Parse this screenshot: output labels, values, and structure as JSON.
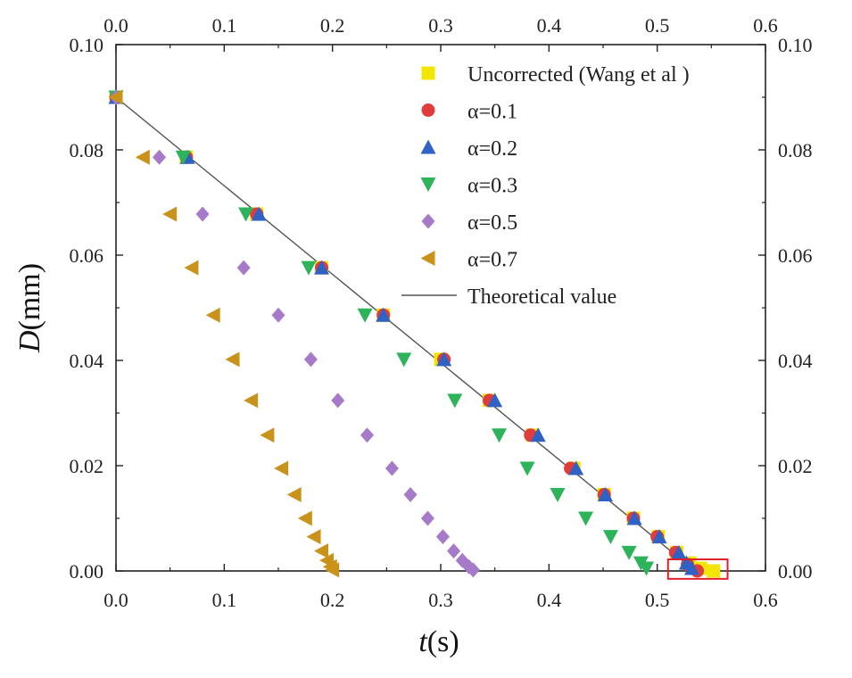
{
  "chart_data": {
    "type": "scatter",
    "xlabel_var": "t",
    "xlabel_unit": "(s)",
    "ylabel_var": "D",
    "ylabel_unit": "(mm)",
    "xlim": [
      0.0,
      0.6
    ],
    "ylim": [
      0.0,
      0.1
    ],
    "x_ticks": [
      "0.0",
      "0.1",
      "0.2",
      "0.3",
      "0.4",
      "0.5",
      "0.6"
    ],
    "y_ticks": [
      "0.00",
      "0.02",
      "0.04",
      "0.06",
      "0.08",
      "0.10"
    ],
    "grid": false,
    "legend_position": "top-right",
    "highlight_box": {
      "x": [
        0.51,
        0.565
      ],
      "y": [
        -0.0015,
        0.0022
      ],
      "color": "#e0202a"
    },
    "series": [
      {
        "name": "Uncorrected (Wang et al )",
        "marker": "square",
        "color": "#f2e600",
        "x": [
          0.0,
          0.065,
          0.13,
          0.19,
          0.247,
          0.3,
          0.345,
          0.385,
          0.423,
          0.451,
          0.478,
          0.501,
          0.518,
          0.53,
          0.54,
          0.552
        ],
        "y": [
          0.09,
          0.0786,
          0.0678,
          0.0576,
          0.0486,
          0.0402,
          0.0324,
          0.0258,
          0.0195,
          0.0145,
          0.01,
          0.0065,
          0.0035,
          0.0015,
          0.0005,
          0.0
        ]
      },
      {
        "name": "α=0.1",
        "marker": "circle",
        "color": "#e03c3c",
        "x": [
          0.0,
          0.065,
          0.13,
          0.19,
          0.247,
          0.303,
          0.345,
          0.383,
          0.42,
          0.451,
          0.478,
          0.5,
          0.517,
          0.528,
          0.537
        ],
        "y": [
          0.09,
          0.0786,
          0.0678,
          0.0576,
          0.0486,
          0.0402,
          0.0324,
          0.0258,
          0.0195,
          0.0145,
          0.01,
          0.0065,
          0.0035,
          0.0012,
          0.0
        ]
      },
      {
        "name": "α=0.2",
        "marker": "triangle-up",
        "color": "#2f62c4",
        "x": [
          0.0,
          0.066,
          0.132,
          0.19,
          0.247,
          0.303,
          0.35,
          0.39,
          0.425,
          0.452,
          0.479,
          0.502,
          0.52,
          0.527,
          0.532
        ],
        "y": [
          0.09,
          0.0786,
          0.0678,
          0.0576,
          0.0486,
          0.0402,
          0.0324,
          0.0258,
          0.0195,
          0.0145,
          0.01,
          0.0065,
          0.0035,
          0.0015,
          0.0005
        ]
      },
      {
        "name": "α=0.3",
        "marker": "triangle-down",
        "color": "#2db35a",
        "x": [
          0.0,
          0.062,
          0.12,
          0.178,
          0.23,
          0.266,
          0.313,
          0.354,
          0.38,
          0.408,
          0.434,
          0.457,
          0.474,
          0.485,
          0.49
        ],
        "y": [
          0.09,
          0.0786,
          0.0678,
          0.0576,
          0.0486,
          0.0402,
          0.0324,
          0.0258,
          0.0195,
          0.0145,
          0.01,
          0.0065,
          0.0035,
          0.0015,
          0.0005
        ]
      },
      {
        "name": "α=0.5",
        "marker": "diamond",
        "color": "#a77ac9",
        "x": [
          0.0,
          0.04,
          0.08,
          0.118,
          0.15,
          0.18,
          0.205,
          0.232,
          0.255,
          0.272,
          0.288,
          0.302,
          0.312,
          0.32,
          0.326,
          0.33
        ],
        "y": [
          0.09,
          0.0786,
          0.0678,
          0.0576,
          0.0486,
          0.0402,
          0.0324,
          0.0258,
          0.0195,
          0.0145,
          0.01,
          0.0065,
          0.0038,
          0.002,
          0.0008,
          0.0002
        ]
      },
      {
        "name": "α=0.7",
        "marker": "triangle-left",
        "color": "#c9921a",
        "x": [
          0.0,
          0.025,
          0.05,
          0.07,
          0.09,
          0.108,
          0.125,
          0.14,
          0.153,
          0.165,
          0.175,
          0.183,
          0.19,
          0.195,
          0.198,
          0.2
        ],
        "y": [
          0.09,
          0.0786,
          0.0678,
          0.0576,
          0.0486,
          0.0402,
          0.0324,
          0.0258,
          0.0195,
          0.0145,
          0.01,
          0.0065,
          0.0038,
          0.002,
          0.0008,
          0.0002
        ]
      },
      {
        "name": "Theoretical value",
        "marker": "line",
        "color": "#555555",
        "x": [
          0.0,
          0.535
        ],
        "y": [
          0.09,
          0.0
        ]
      }
    ]
  }
}
